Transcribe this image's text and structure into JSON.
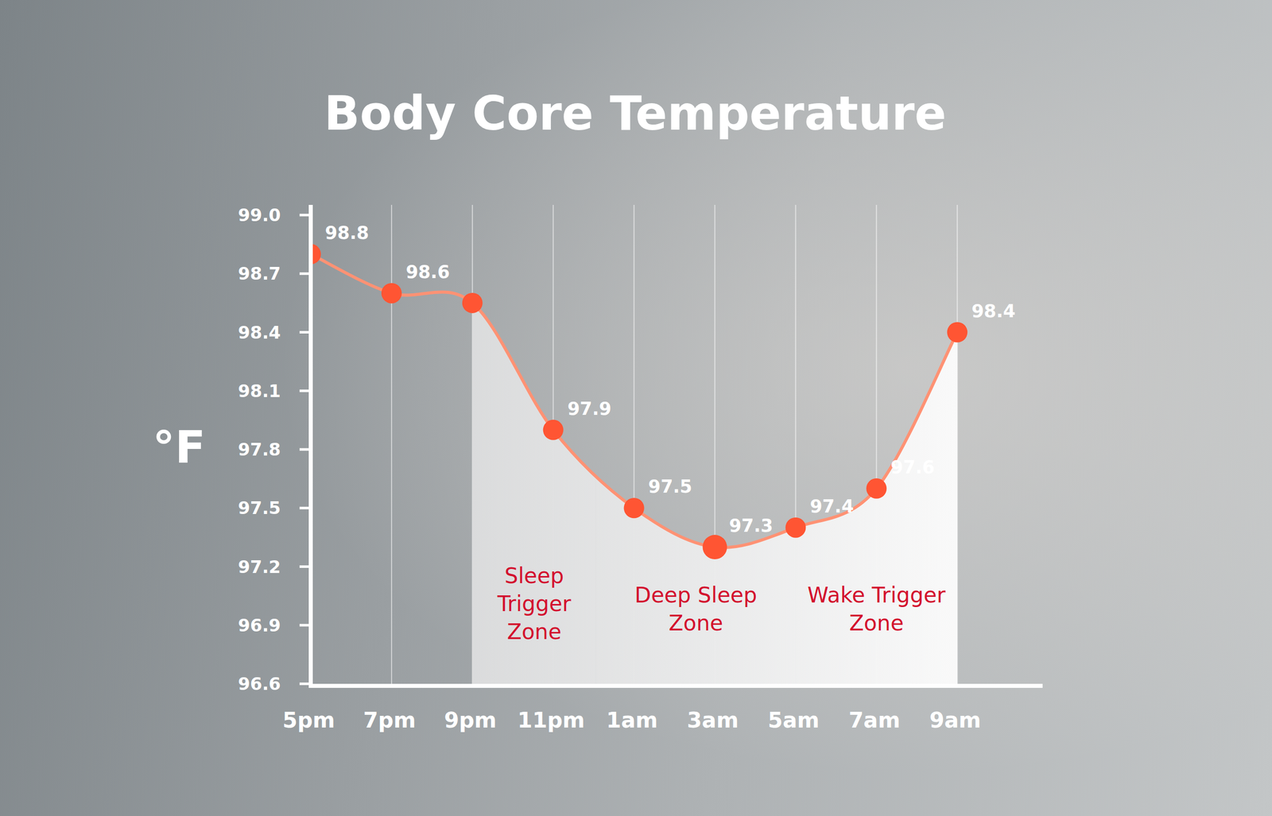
{
  "chart_data": {
    "type": "line",
    "title": "Body Core Temperature",
    "y_label": "°F",
    "categories": [
      "5pm",
      "7pm",
      "9pm",
      "11pm",
      "1am",
      "3am",
      "5am",
      "7am",
      "9am"
    ],
    "values": [
      98.8,
      98.6,
      98.55,
      97.9,
      97.5,
      97.3,
      97.4,
      97.6,
      98.4
    ],
    "value_labels": [
      "98.8",
      "98.6",
      null,
      "97.9",
      "97.5",
      "97.3",
      "97.4",
      "97.6",
      "98.4"
    ],
    "data_labels": true,
    "color": "#ff9274",
    "marker": "circle",
    "grid": true,
    "ylim": [
      96.6,
      99.0
    ],
    "yticks": [
      96.6,
      96.9,
      97.2,
      97.5,
      97.8,
      98.1,
      98.4,
      98.7,
      {
        "value": 99.0,
        "label": "99.0"
      }
    ],
    "zones": [
      {
        "lines": [
          "Sleep",
          "Trigger",
          "Zone"
        ],
        "start": 2,
        "end": 3.53
      },
      {
        "lines": [
          "Deep Sleep",
          "Zone"
        ],
        "start": 3.53,
        "end": 6
      },
      {
        "lines": [
          "Wake Trigger",
          "Zone"
        ],
        "start": 6,
        "end": 8
      }
    ]
  }
}
